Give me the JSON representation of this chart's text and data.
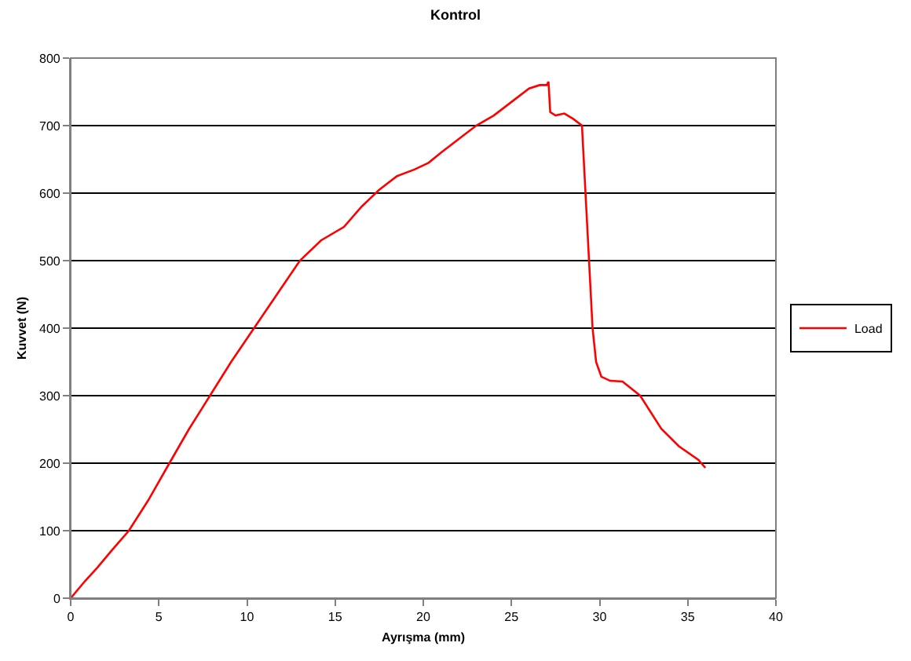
{
  "chart_data": {
    "type": "line",
    "title": "Kontrol",
    "xlabel": "Ayrışma (mm)",
    "ylabel": "Kuvvet (N)",
    "xlim": [
      0,
      40
    ],
    "xticks": [
      0,
      5,
      10,
      15,
      20,
      25,
      30,
      35,
      40
    ],
    "ylim": [
      0,
      800
    ],
    "yticks": [
      0,
      100,
      200,
      300,
      400,
      500,
      600,
      700,
      800
    ],
    "grid": "y",
    "legend": "right",
    "marker": "none",
    "line_style": "solid",
    "series": [
      {
        "name": "Load",
        "color": "#ff0000",
        "x": [
          0,
          0.8,
          1.5,
          2.3,
          3.3,
          4.4,
          5.6,
          6.7,
          7.9,
          9.1,
          10.4,
          11.7,
          13,
          14.2,
          15.5,
          16.5,
          17.5,
          18.5,
          19.5,
          20.3,
          21,
          22,
          23,
          24,
          25,
          26,
          26.6,
          27,
          27.1,
          27.2,
          27.5,
          28,
          28.5,
          29,
          29.2,
          29.4,
          29.6,
          29.8,
          30.1,
          30.6,
          31.3,
          32.3,
          33.5,
          34.5,
          35.6,
          36
        ],
        "values": [
          0,
          25,
          45,
          70,
          100,
          145,
          200,
          250,
          300,
          350,
          400,
          450,
          500,
          530,
          550,
          580,
          605,
          625,
          635,
          645,
          660,
          680,
          700,
          715,
          735,
          755,
          760,
          760,
          765,
          720,
          715,
          718,
          710,
          700,
          600,
          500,
          400,
          350,
          328,
          322,
          321,
          300,
          251,
          225,
          205,
          193
        ]
      }
    ]
  }
}
